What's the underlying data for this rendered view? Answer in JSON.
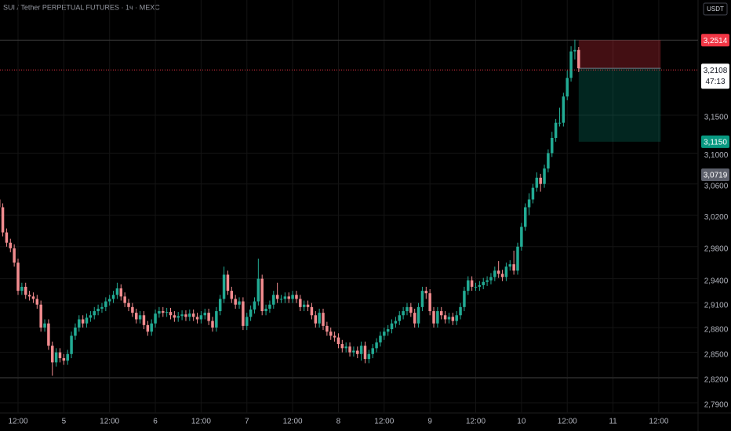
{
  "chart_data": {
    "type": "candlestick",
    "title": "SUI / Tether PERPETUAL FUTURES · 1ч · MEXC",
    "currency": "USDT",
    "log_scale": true,
    "grid": true,
    "up_color": "#22ab94",
    "down_color": "#f28c8f",
    "ylim": [
      2.778,
      3.307
    ],
    "yticks": [
      {
        "value": 3.15,
        "label": "3,1500"
      },
      {
        "value": 3.1,
        "label": "3,1000"
      },
      {
        "value": 3.06,
        "label": "3,0600"
      },
      {
        "value": 3.02,
        "label": "3,0200"
      },
      {
        "value": 2.98,
        "label": "2,9800"
      },
      {
        "value": 2.94,
        "label": "2,9400"
      },
      {
        "value": 2.91,
        "label": "2,9100"
      },
      {
        "value": 2.88,
        "label": "2,8800"
      },
      {
        "value": 2.85,
        "label": "2,8500"
      },
      {
        "value": 2.82,
        "label": "2,8200"
      },
      {
        "value": 2.79,
        "label": "2,7900"
      }
    ],
    "xlim": [
      0.27,
      183.3
    ],
    "xticks": [
      {
        "value": 5,
        "label": "12:00"
      },
      {
        "value": 17,
        "label": "5"
      },
      {
        "value": 29,
        "label": "12:00"
      },
      {
        "value": 41,
        "label": "6"
      },
      {
        "value": 53,
        "label": "12:00"
      },
      {
        "value": 65,
        "label": "7"
      },
      {
        "value": 77,
        "label": "12:00"
      },
      {
        "value": 89,
        "label": "8"
      },
      {
        "value": 101,
        "label": "12:00"
      },
      {
        "value": 113,
        "label": "9"
      },
      {
        "value": 125,
        "label": "12:00"
      },
      {
        "value": 137,
        "label": "10"
      },
      {
        "value": 149,
        "label": "12:00"
      },
      {
        "value": 161,
        "label": "11"
      },
      {
        "value": 173,
        "label": "12:00"
      }
    ],
    "open": [
      3.04,
      3.03,
      2.998,
      2.985,
      2.978,
      2.96,
      2.925,
      2.93,
      2.92,
      2.918,
      2.915,
      2.908,
      2.88,
      2.885,
      2.858,
      2.838,
      2.85,
      2.843,
      2.84,
      2.848,
      2.87,
      2.88,
      2.89,
      2.885,
      2.892,
      2.895,
      2.9,
      2.903,
      2.905,
      2.912,
      2.915,
      2.92,
      2.928,
      2.918,
      2.91,
      2.905,
      2.898,
      2.89,
      2.895,
      2.883,
      2.875,
      2.885,
      2.897,
      2.9,
      2.898,
      2.899,
      2.895,
      2.892,
      2.894,
      2.896,
      2.893,
      2.897,
      2.893,
      2.89,
      2.895,
      2.898,
      2.888,
      2.88,
      2.9,
      2.915,
      2.945,
      2.925,
      2.915,
      2.908,
      2.912,
      2.882,
      2.893,
      2.902,
      2.912,
      2.94,
      2.9,
      2.903,
      2.908,
      2.92,
      2.915,
      2.915,
      2.918,
      2.915,
      2.92,
      2.915,
      2.905,
      2.908,
      2.905,
      2.895,
      2.885,
      2.898,
      2.882,
      2.875,
      2.87,
      2.868,
      2.86,
      2.855,
      2.857,
      2.85,
      2.852,
      2.848,
      2.858,
      2.842,
      2.848,
      2.855,
      2.862,
      2.87,
      2.875,
      2.878,
      2.885,
      2.888,
      2.895,
      2.9,
      2.905,
      2.898,
      2.885,
      2.905,
      2.925,
      2.922,
      2.9,
      2.885,
      2.9,
      2.895,
      2.89,
      2.893,
      2.888,
      2.895,
      2.905,
      2.925,
      2.938,
      2.93,
      2.93,
      2.932,
      2.936,
      2.938,
      2.942,
      2.95,
      2.946,
      2.942,
      2.955,
      2.958,
      2.95,
      2.98,
      3.005,
      3.03,
      3.04,
      3.055,
      3.068,
      3.06,
      3.08,
      3.1,
      3.12,
      3.14,
      3.14,
      3.175,
      3.2,
      3.236,
      3.238
    ],
    "high": [
      3.048,
      3.035,
      3.003,
      2.99,
      2.983,
      2.965,
      2.935,
      2.935,
      2.925,
      2.923,
      2.92,
      2.913,
      2.89,
      2.89,
      2.863,
      2.855,
      2.855,
      2.848,
      2.853,
      2.875,
      2.885,
      2.895,
      2.895,
      2.897,
      2.9,
      2.905,
      2.908,
      2.91,
      2.917,
      2.92,
      2.925,
      2.935,
      2.933,
      2.923,
      2.915,
      2.91,
      2.903,
      2.9,
      2.9,
      2.888,
      2.89,
      2.902,
      2.905,
      2.905,
      2.904,
      2.904,
      2.9,
      2.899,
      2.901,
      2.901,
      2.902,
      2.902,
      2.898,
      2.9,
      2.903,
      2.903,
      2.893,
      2.905,
      2.92,
      2.955,
      2.95,
      2.93,
      2.92,
      2.917,
      2.917,
      2.898,
      2.907,
      2.917,
      2.965,
      2.945,
      2.908,
      2.913,
      2.925,
      2.935,
      2.92,
      2.923,
      2.923,
      2.925,
      2.925,
      2.92,
      2.913,
      2.913,
      2.91,
      2.9,
      2.903,
      2.903,
      2.887,
      2.88,
      2.875,
      2.873,
      2.865,
      2.862,
      2.862,
      2.857,
      2.857,
      2.863,
      2.863,
      2.853,
      2.86,
      2.867,
      2.875,
      2.88,
      2.883,
      2.89,
      2.893,
      2.9,
      2.905,
      2.91,
      2.91,
      2.903,
      2.91,
      2.93,
      2.93,
      2.927,
      2.905,
      2.905,
      2.905,
      2.9,
      2.898,
      2.898,
      2.9,
      2.91,
      2.93,
      2.943,
      2.943,
      2.935,
      2.937,
      2.941,
      2.943,
      2.947,
      2.955,
      2.962,
      2.951,
      2.96,
      2.963,
      2.975,
      2.985,
      3.01,
      3.035,
      3.048,
      3.06,
      3.075,
      3.073,
      3.085,
      3.105,
      3.128,
      3.145,
      3.16,
      3.18,
      3.21,
      3.243,
      3.252,
      3.242
    ],
    "low": [
      3.025,
      2.993,
      2.98,
      2.973,
      2.955,
      2.92,
      2.92,
      2.915,
      2.913,
      2.91,
      2.903,
      2.875,
      2.875,
      2.853,
      2.822,
      2.833,
      2.838,
      2.835,
      2.835,
      2.843,
      2.865,
      2.875,
      2.88,
      2.88,
      2.887,
      2.89,
      2.895,
      2.898,
      2.9,
      2.907,
      2.91,
      2.915,
      2.913,
      2.905,
      2.9,
      2.893,
      2.885,
      2.885,
      2.878,
      2.87,
      2.87,
      2.88,
      2.892,
      2.893,
      2.893,
      2.89,
      2.887,
      2.887,
      2.889,
      2.888,
      2.888,
      2.888,
      2.885,
      2.885,
      2.89,
      2.883,
      2.875,
      2.875,
      2.895,
      2.91,
      2.92,
      2.91,
      2.903,
      2.903,
      2.877,
      2.877,
      2.888,
      2.897,
      2.907,
      2.895,
      2.895,
      2.898,
      2.903,
      2.91,
      2.91,
      2.91,
      2.91,
      2.91,
      2.91,
      2.9,
      2.9,
      2.9,
      2.89,
      2.88,
      2.88,
      2.877,
      2.87,
      2.865,
      2.863,
      2.855,
      2.85,
      2.85,
      2.845,
      2.845,
      2.843,
      2.84,
      2.837,
      2.837,
      2.843,
      2.85,
      2.857,
      2.865,
      2.87,
      2.873,
      2.88,
      2.883,
      2.89,
      2.895,
      2.893,
      2.88,
      2.88,
      2.9,
      2.915,
      2.895,
      2.88,
      2.88,
      2.89,
      2.885,
      2.885,
      2.883,
      2.883,
      2.89,
      2.9,
      2.92,
      2.925,
      2.925,
      2.925,
      2.927,
      2.931,
      2.933,
      2.937,
      2.941,
      2.937,
      2.937,
      2.95,
      2.945,
      2.945,
      2.975,
      3.0,
      3.02,
      3.035,
      3.05,
      3.05,
      3.055,
      3.075,
      3.095,
      3.115,
      3.135,
      3.135,
      3.17,
      3.195,
      3.225,
      3.208
    ],
    "close": [
      3.03,
      2.998,
      2.985,
      2.978,
      2.96,
      2.925,
      2.93,
      2.92,
      2.918,
      2.915,
      2.908,
      2.88,
      2.885,
      2.858,
      2.838,
      2.85,
      2.843,
      2.84,
      2.848,
      2.87,
      2.88,
      2.89,
      2.885,
      2.892,
      2.895,
      2.9,
      2.903,
      2.905,
      2.912,
      2.915,
      2.92,
      2.928,
      2.918,
      2.91,
      2.905,
      2.898,
      2.89,
      2.895,
      2.883,
      2.875,
      2.885,
      2.897,
      2.9,
      2.898,
      2.899,
      2.895,
      2.892,
      2.894,
      2.896,
      2.893,
      2.897,
      2.893,
      2.89,
      2.895,
      2.898,
      2.888,
      2.88,
      2.9,
      2.915,
      2.945,
      2.925,
      2.915,
      2.908,
      2.912,
      2.882,
      2.893,
      2.902,
      2.912,
      2.94,
      2.9,
      2.903,
      2.908,
      2.92,
      2.915,
      2.915,
      2.918,
      2.915,
      2.92,
      2.915,
      2.905,
      2.908,
      2.905,
      2.895,
      2.885,
      2.898,
      2.882,
      2.875,
      2.87,
      2.868,
      2.86,
      2.855,
      2.857,
      2.85,
      2.852,
      2.848,
      2.858,
      2.842,
      2.848,
      2.855,
      2.862,
      2.87,
      2.875,
      2.878,
      2.885,
      2.888,
      2.895,
      2.9,
      2.905,
      2.898,
      2.885,
      2.905,
      2.925,
      2.922,
      2.9,
      2.885,
      2.9,
      2.895,
      2.89,
      2.893,
      2.888,
      2.895,
      2.905,
      2.925,
      2.938,
      2.93,
      2.93,
      2.932,
      2.936,
      2.938,
      2.942,
      2.95,
      2.946,
      2.942,
      2.955,
      2.958,
      2.95,
      2.98,
      3.005,
      3.03,
      3.04,
      3.055,
      3.068,
      3.06,
      3.08,
      3.1,
      3.12,
      3.14,
      3.14,
      3.175,
      3.2,
      3.236,
      3.238,
      3.213
    ],
    "position": {
      "entry": 3.213,
      "stop": 3.2514,
      "target": 3.115,
      "start": 152,
      "end": 173.5
    },
    "hlines": [
      3.2514,
      2.8195
    ],
    "price_labels": [
      {
        "value": 3.2514,
        "label": "3,2514",
        "color": "#f23645"
      },
      {
        "value": 3.2108,
        "label": "3,2108",
        "countdown": "47:13",
        "color": "#ffffff"
      },
      {
        "value": 3.115,
        "label": "3,1150",
        "color": "#089981"
      },
      {
        "value": 3.0719,
        "label": "3,0719",
        "color": "#5d606b"
      }
    ]
  }
}
